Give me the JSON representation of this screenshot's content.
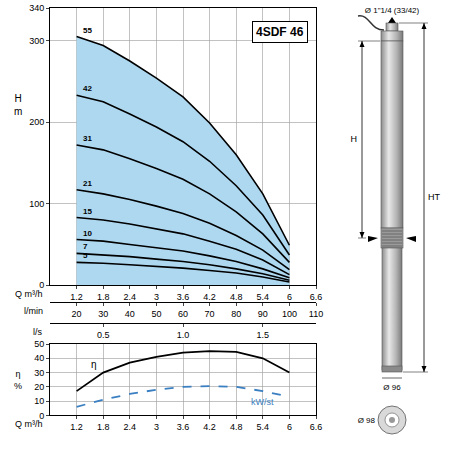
{
  "chart_data": [
    {
      "type": "line",
      "title": "4SDF 46",
      "x_label": "Q m³/h",
      "y_label": "H m",
      "x": [
        1.2,
        1.8,
        2.4,
        3.0,
        3.6,
        4.2,
        4.8,
        5.4,
        6.0
      ],
      "series": [
        {
          "name": "55",
          "color": "#000000",
          "values": [
            305,
            294,
            275,
            254,
            231,
            199,
            160,
            112,
            49
          ]
        },
        {
          "name": "42",
          "color": "#000000",
          "values": [
            233,
            225,
            210,
            194,
            176,
            152,
            122,
            86,
            37
          ]
        },
        {
          "name": "31",
          "color": "#000000",
          "values": [
            172,
            166,
            155,
            143,
            130,
            112,
            90,
            63,
            28
          ]
        },
        {
          "name": "21",
          "color": "#000000",
          "values": [
            117,
            112,
            105,
            97,
            88,
            76,
            61,
            43,
            19
          ]
        },
        {
          "name": "15",
          "color": "#000000",
          "values": [
            83,
            80,
            75,
            69,
            63,
            54,
            44,
            31,
            13
          ]
        },
        {
          "name": "10",
          "color": "#000000",
          "values": [
            56,
            54,
            50,
            46,
            42,
            36,
            29,
            20,
            9
          ]
        },
        {
          "name": "7",
          "color": "#000000",
          "values": [
            39,
            37,
            35,
            32,
            29,
            25,
            20,
            14,
            6
          ]
        },
        {
          "name": "5",
          "color": "#000000",
          "values": [
            28,
            27,
            25,
            23,
            21,
            18,
            15,
            10,
            4
          ]
        }
      ],
      "xlim": [
        0.6,
        6.6
      ],
      "xticks": [
        1.2,
        1.8,
        2.4,
        3,
        3.6,
        4.2,
        4.8,
        5.4,
        6,
        6.6
      ],
      "x2_label": "l/min",
      "x2lim": [
        10,
        110
      ],
      "x2ticks": [
        20,
        30,
        40,
        50,
        60,
        70,
        80,
        90,
        100,
        110
      ],
      "x3_label": "l/s",
      "x3lim": [
        0.167,
        1.833
      ],
      "x3ticks": [
        0.5,
        {
          "value": 1,
          "label": "1.0"
        },
        1.5
      ],
      "ylim": [
        0,
        340
      ],
      "yticks": [
        0,
        100,
        200,
        300,
        340
      ],
      "grid": true
    },
    {
      "type": "line",
      "x_label": "Q m³/h",
      "y_label": "η %",
      "x": [
        1.2,
        1.8,
        2.4,
        3.0,
        3.6,
        4.2,
        4.8,
        5.4,
        6.0
      ],
      "series": [
        {
          "name": "η",
          "color": "#000000",
          "line_style": "solid",
          "values": [
            17,
            30,
            37,
            41,
            44,
            45,
            44.5,
            40,
            30
          ]
        },
        {
          "name": "kW/st",
          "color": "#3a7fc1",
          "line_style": "dash",
          "values": [
            6,
            11,
            15,
            18,
            20,
            20.5,
            20,
            17,
            13
          ]
        }
      ],
      "xlim": [
        0.6,
        6.6
      ],
      "xticks": [
        1.2,
        1.8,
        2.4,
        3,
        3.6,
        4.2,
        4.8,
        5.4,
        6,
        6.6
      ],
      "ylim": [
        0,
        50
      ],
      "yticks": [
        0,
        10,
        20,
        30,
        40,
        50
      ],
      "grid": true
    }
  ],
  "drawing": {
    "labels": {
      "outlet": "Ø 1\"1/4 (33/42)",
      "height": "H",
      "total_height": "HT",
      "body_diameter": "Ø 96",
      "max_diameter": "Ø 98"
    }
  }
}
